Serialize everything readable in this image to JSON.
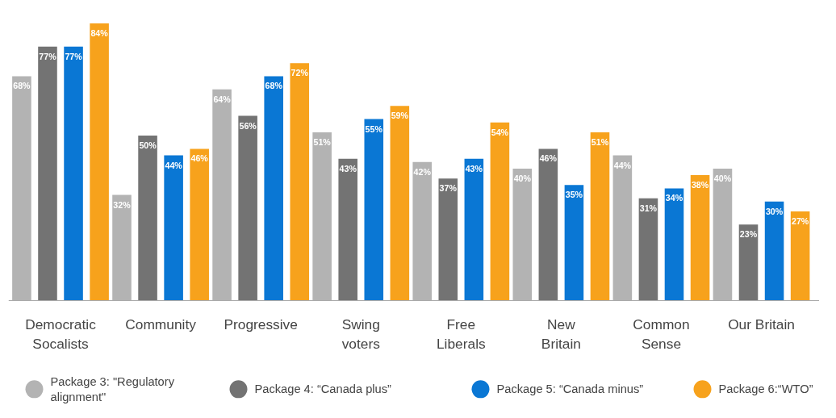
{
  "chart_data": {
    "type": "bar",
    "categories": [
      "Democratic\nSocalists",
      "Community",
      "Progressive",
      "Swing\nvoters",
      "Free\nLiberals",
      "New\nBritain",
      "Common\nSense",
      "Our Britain"
    ],
    "series": [
      {
        "name": "Package 3: \"Regulatory\nalignment\"",
        "color": "#b3b3b3",
        "values": [
          68,
          32,
          64,
          51,
          42,
          40,
          44,
          40
        ],
        "value_labels": [
          "68%",
          "32%",
          "64%",
          "51%",
          "42%",
          "40%",
          "44%",
          "40%"
        ]
      },
      {
        "name": "Package 4: “Canada plus”",
        "color": "#737373",
        "values": [
          77,
          50,
          56,
          43,
          37,
          46,
          31,
          23
        ],
        "value_labels": [
          "77%",
          "50%",
          "56%",
          "43%",
          "37%",
          "46%",
          "31%",
          "23%"
        ]
      },
      {
        "name": "Package 5: “Canada minus”",
        "color": "#0a77d4",
        "values": [
          77,
          44,
          68,
          55,
          43,
          35,
          34,
          30
        ],
        "value_labels": [
          "77%",
          "44%",
          "68%",
          "55%",
          "43%",
          "35%",
          "34%",
          "30%"
        ]
      },
      {
        "name": "Package 6:“WTO”",
        "color": "#f7a21c",
        "values": [
          84,
          46,
          72,
          59,
          54,
          51,
          38,
          27
        ],
        "value_labels": [
          "84%",
          "46%",
          "72%",
          "59%",
          "54%",
          "51%",
          "38%",
          "27%"
        ]
      }
    ],
    "tick_labels": "x",
    "legend": "bottom",
    "marker": "circle"
  }
}
